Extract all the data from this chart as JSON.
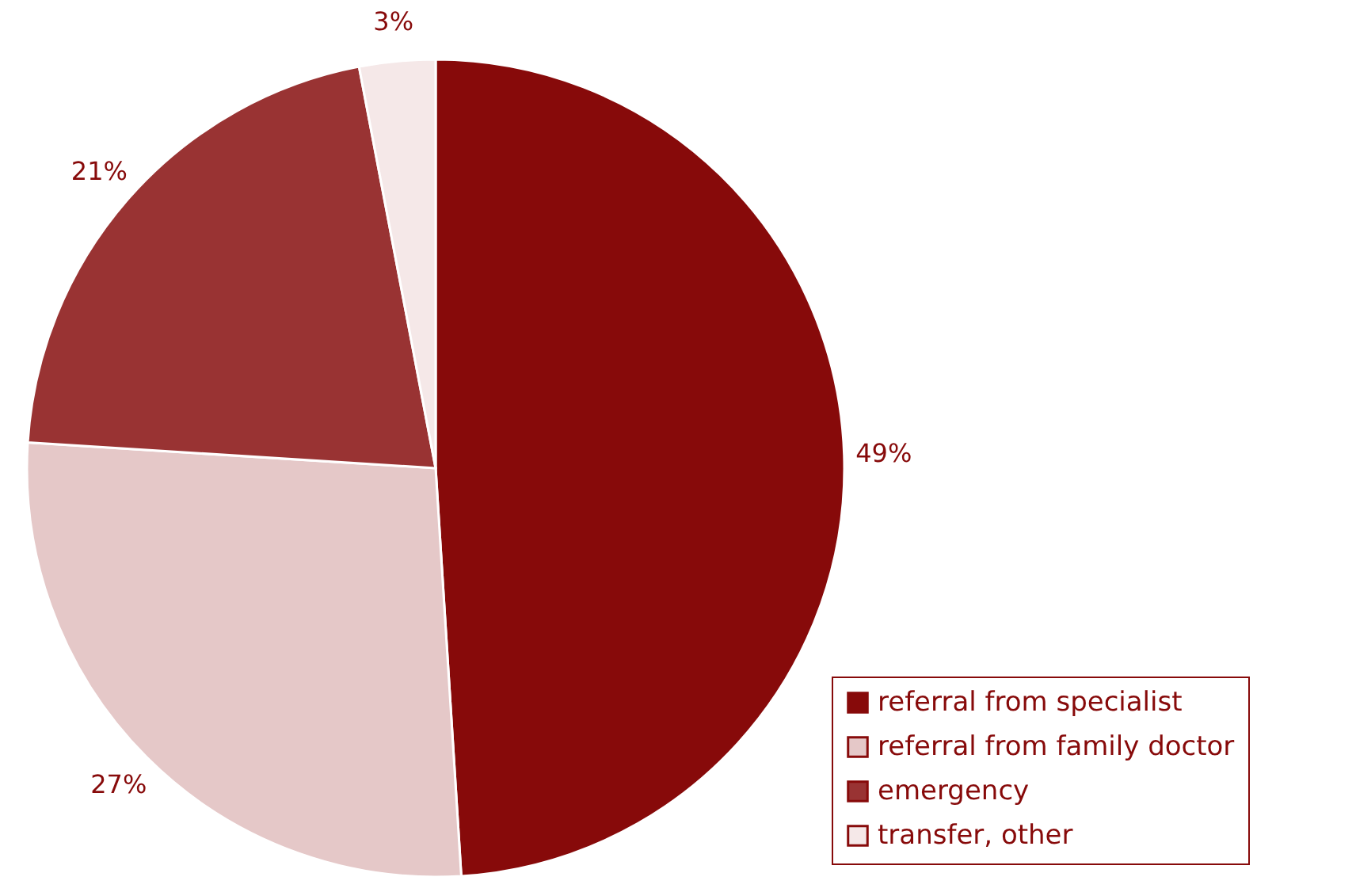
{
  "chart_data": {
    "type": "pie",
    "categories": [
      "referral from specialist",
      "referral from family doctor",
      "emergency",
      "transfer, other"
    ],
    "values": [
      49,
      27,
      21,
      3
    ],
    "value_labels": [
      "49%",
      "27%",
      "21%",
      "3%"
    ],
    "colors": [
      "#870a0a",
      "#e5c8c8",
      "#993333",
      "#f5e8e8"
    ],
    "legend": "bottom right"
  }
}
